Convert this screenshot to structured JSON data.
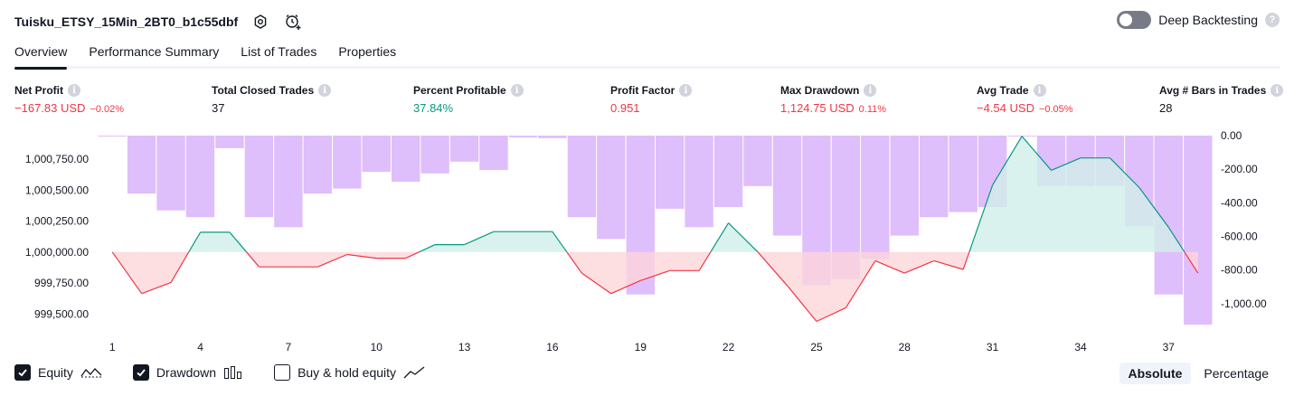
{
  "header": {
    "title": "Tuisku_ETSY_15Min_2BT0_b1c55dbf",
    "deep_backtesting_label": "Deep Backtesting",
    "deep_backtesting_on": false,
    "help_glyph": "?"
  },
  "tabs": [
    {
      "label": "Overview",
      "active": true
    },
    {
      "label": "Performance Summary",
      "active": false
    },
    {
      "label": "List of Trades",
      "active": false
    },
    {
      "label": "Properties",
      "active": false
    }
  ],
  "info_glyph": "i",
  "metrics": {
    "net_profit": {
      "label": "Net Profit",
      "value": "−167.83 USD",
      "sub": "−0.02%"
    },
    "closed_trades": {
      "label": "Total Closed Trades",
      "value": "37"
    },
    "percent_profitable": {
      "label": "Percent Profitable",
      "value": "37.84%"
    },
    "profit_factor": {
      "label": "Profit Factor",
      "value": "0.951"
    },
    "max_drawdown": {
      "label": "Max Drawdown",
      "value": "1,124.75 USD",
      "sub": "0.11%"
    },
    "avg_trade": {
      "label": "Avg Trade",
      "value": "−4.54 USD",
      "sub": "−0.05%"
    },
    "avg_bars": {
      "label": "Avg # Bars in Trades",
      "value": "28"
    }
  },
  "legend": {
    "equity": {
      "label": "Equity",
      "checked": true
    },
    "drawdown": {
      "label": "Drawdown",
      "checked": true
    },
    "buy_hold": {
      "label": "Buy & hold equity",
      "checked": false
    }
  },
  "mode": {
    "absolute": "Absolute",
    "percentage": "Percentage",
    "selected": "absolute"
  },
  "colors": {
    "positive": "#089981",
    "negative": "#f23645",
    "drawdown_bar": "#d4a8fb",
    "equity_up_fill": "#d1efe8",
    "equity_down_fill": "#fcd6d9"
  },
  "chart_data": {
    "type": "line",
    "x": [
      1,
      2,
      3,
      4,
      5,
      6,
      7,
      8,
      9,
      10,
      11,
      12,
      13,
      14,
      15,
      16,
      17,
      18,
      19,
      20,
      21,
      22,
      23,
      24,
      25,
      26,
      27,
      28,
      29,
      30,
      31,
      32,
      33,
      34,
      35,
      36,
      37,
      38
    ],
    "x_tick_labels": [
      "1",
      "4",
      "7",
      "10",
      "13",
      "16",
      "19",
      "22",
      "25",
      "28",
      "31",
      "34",
      "37"
    ],
    "equity": {
      "baseline": 1000000,
      "values": [
        1000000,
        999665,
        999755,
        1000160,
        1000160,
        999880,
        999880,
        999880,
        999980,
        999950,
        999950,
        1000060,
        1000060,
        1000165,
        1000165,
        1000165,
        999830,
        999665,
        999770,
        999850,
        999850,
        1000235,
        1000000,
        999730,
        999440,
        999550,
        999930,
        999830,
        999930,
        999860,
        1000540,
        1000935,
        1000660,
        1000760,
        1000760,
        1000520,
        1000200,
        999830
      ],
      "ylim": [
        999400,
        1000940
      ],
      "y_ticks": [
        "1,000,750.00",
        "1,000,500.00",
        "1,000,250.00",
        "1,000,000.00",
        "999,750.00",
        "999,500.00"
      ]
    },
    "drawdown": {
      "values": [
        -5,
        -345,
        -445,
        -485,
        -75,
        -485,
        -545,
        -345,
        -315,
        -215,
        -275,
        -225,
        -155,
        -205,
        -10,
        -15,
        -485,
        -615,
        -945,
        -435,
        -545,
        -425,
        -300,
        -595,
        -890,
        -855,
        -735,
        -595,
        -485,
        -455,
        -425,
        0,
        -300,
        -300,
        -300,
        -540,
        -945,
        -1125
      ],
      "ylim": [
        -1135,
        0
      ],
      "y_ticks": [
        "0.00",
        "-200.00",
        "-400.00",
        "-600.00",
        "-800.00",
        "-1,000.00"
      ]
    }
  }
}
